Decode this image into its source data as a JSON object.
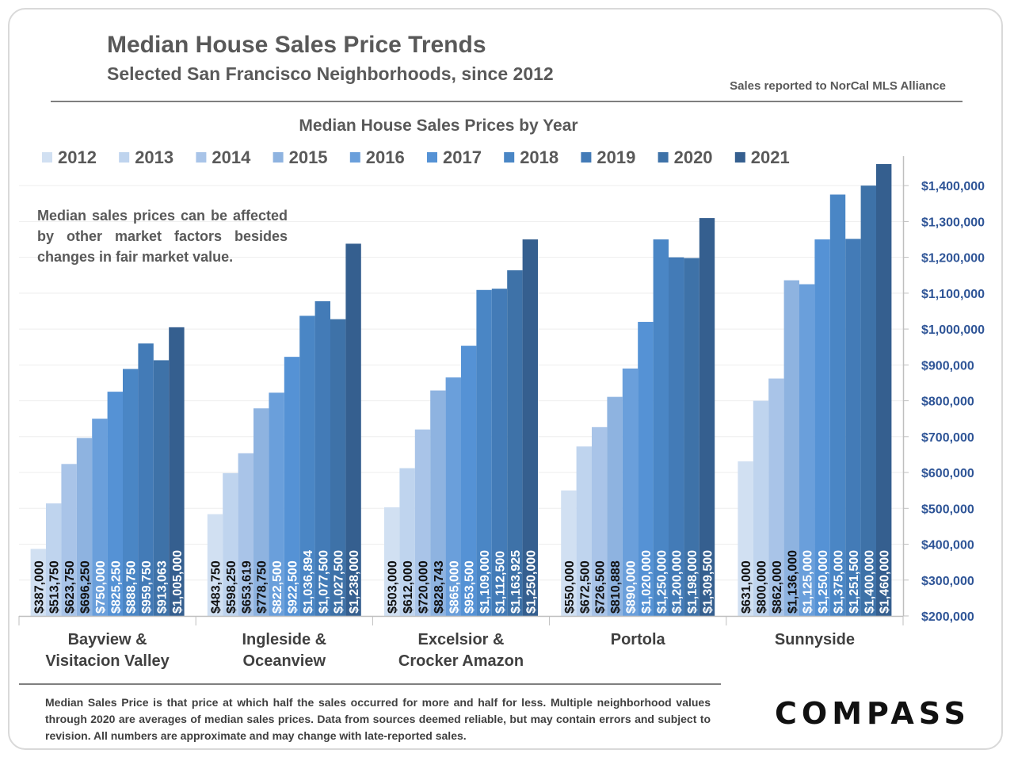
{
  "header": {
    "title": "Median House Sales Price Trends",
    "subtitle": "Selected San Francisco Neighborhoods, since 2012",
    "source": "Sales reported to NorCal MLS Alliance"
  },
  "note": "Median sales prices can be affected by other market factors besides changes in fair market value.",
  "footnote": "Median Sales Price is that price at which half the sales occurred for more and half for less. Multiple neighborhood values through 2020 are averages of median sales prices. Data from sources deemed reliable, but may contain errors and subject to revision.  All numbers are approximate and may change with late-reported sales.",
  "logo": "COMPASS",
  "chart_data": {
    "type": "bar",
    "title": "Median House Sales Prices by Year",
    "categories": [
      [
        "Bayview &",
        "Visitacion Valley"
      ],
      [
        "Ingleside &",
        "Oceanview"
      ],
      [
        "Excelsior &",
        "Crocker Amazon"
      ],
      [
        "Portola"
      ],
      [
        "Sunnyside"
      ]
    ],
    "series": [
      {
        "name": "2012",
        "color": "#d1e0f2",
        "values": [
          387000,
          483750,
          503000,
          550000,
          631000
        ],
        "labels": [
          "$387,000",
          "$483,750",
          "$503,000",
          "$550,000",
          "$631,000"
        ]
      },
      {
        "name": "2013",
        "color": "#bfd4ee",
        "values": [
          513750,
          598250,
          612000,
          672500,
          800000
        ],
        "labels": [
          "$513,750",
          "$598,250",
          "$612,000",
          "$672,500",
          "$800,000"
        ]
      },
      {
        "name": "2014",
        "color": "#a9c4e8",
        "values": [
          623750,
          653619,
          720000,
          726500,
          862000
        ],
        "labels": [
          "$623,750",
          "$653,619",
          "$720,000",
          "$726,500",
          "$862,000"
        ]
      },
      {
        "name": "2015",
        "color": "#8eb3e0",
        "values": [
          696250,
          778750,
          828743,
          810888,
          1136000
        ],
        "labels": [
          "$696,250",
          "$778,750",
          "$828,743",
          "$810,888",
          "$1,136,000"
        ]
      },
      {
        "name": "2016",
        "color": "#6a9fdb",
        "values": [
          750000,
          822500,
          865000,
          890000,
          1125000
        ],
        "labels": [
          "$750,000",
          "$822,500",
          "$865,000",
          "$890,000",
          "$1,125,000"
        ]
      },
      {
        "name": "2017",
        "color": "#5592d5",
        "values": [
          825250,
          922500,
          953500,
          1020000,
          1250000
        ],
        "labels": [
          "$825,250",
          "$922,500",
          "$953,500",
          "$1,020,000",
          "$1,250,000"
        ]
      },
      {
        "name": "2018",
        "color": "#4a86c5",
        "values": [
          888750,
          1036894,
          1109000,
          1250000,
          1375000
        ],
        "labels": [
          "$888,750",
          "$1,036,894",
          "$1,109,000",
          "$1,250,000",
          "$1,375,000"
        ]
      },
      {
        "name": "2019",
        "color": "#437bb7",
        "values": [
          959750,
          1077500,
          1112500,
          1200000,
          1251500
        ],
        "labels": [
          "$959,750",
          "$1,077,500",
          "$1,112,500",
          "$1,200,000",
          "$1,251,500"
        ]
      },
      {
        "name": "2020",
        "color": "#3e72a8",
        "values": [
          913063,
          1027500,
          1163925,
          1198000,
          1400000
        ],
        "labels": [
          "$913,063",
          "$1,027,500",
          "$1,163,925",
          "$1,198,000",
          "$1,400,000"
        ]
      },
      {
        "name": "2021",
        "color": "#355f8f",
        "values": [
          1005000,
          1238000,
          1250000,
          1309500,
          1460000
        ],
        "labels": [
          "$1,005,000",
          "$1,238,000",
          "$1,250,000",
          "$1,309,500",
          "$1,460,000"
        ]
      }
    ],
    "y_axis": {
      "position": "right",
      "min": 200000,
      "max": 1460000,
      "ticks": [
        200000,
        300000,
        400000,
        500000,
        600000,
        700000,
        800000,
        900000,
        1000000,
        1100000,
        1200000,
        1300000,
        1400000
      ],
      "tick_labels": [
        "$200,000",
        "$300,000",
        "$400,000",
        "$500,000",
        "$600,000",
        "$700,000",
        "$800,000",
        "$900,000",
        "$1,000,000",
        "$1,100,000",
        "$1,200,000",
        "$1,300,000",
        "$1,400,000"
      ],
      "label_color": "#2f5597"
    },
    "grid": true,
    "legend": "top",
    "data_label_color": "#111111"
  }
}
